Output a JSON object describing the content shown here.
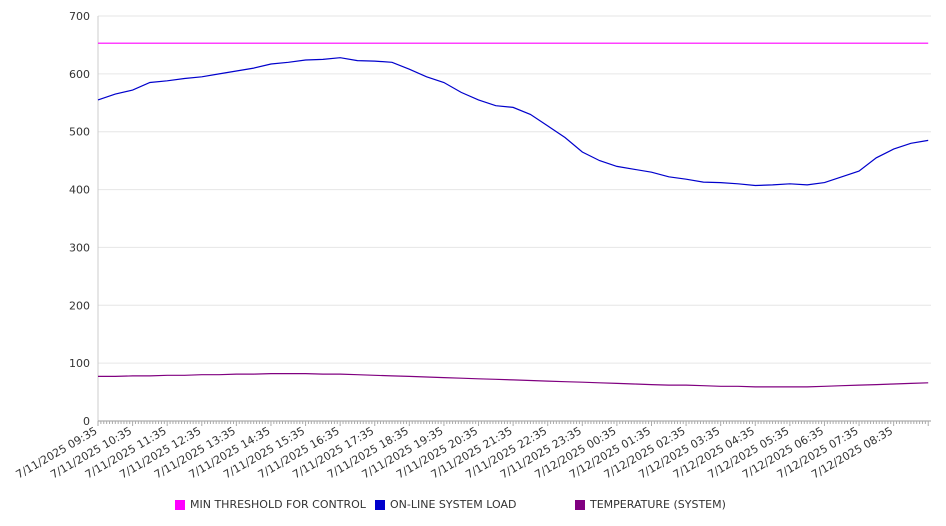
{
  "chart_data": {
    "type": "line",
    "ylim": [
      0,
      700
    ],
    "yticks": [
      0,
      100,
      200,
      300,
      400,
      500,
      600,
      700
    ],
    "x_tick_labels": [
      "7/11/2025 09:35",
      "7/11/2025 10:35",
      "7/11/2025 11:35",
      "7/11/2025 12:35",
      "7/11/2025 13:35",
      "7/11/2025 14:35",
      "7/11/2025 15:35",
      "7/11/2025 16:35",
      "7/11/2025 17:35",
      "7/11/2025 18:35",
      "7/11/2025 19:35",
      "7/11/2025 20:35",
      "7/11/2025 21:35",
      "7/11/2025 22:35",
      "7/11/2025 23:35",
      "7/12/2025 00:35",
      "7/12/2025 01:35",
      "7/12/2025 02:35",
      "7/12/2025 03:35",
      "7/12/2025 04:35",
      "7/12/2025 05:35",
      "7/12/2025 06:35",
      "7/12/2025 07:35",
      "7/12/2025 08:35"
    ],
    "x_hours": [
      0,
      0.5,
      1,
      1.5,
      2,
      2.5,
      3,
      3.5,
      4,
      4.5,
      5,
      5.5,
      6,
      6.5,
      7,
      7.5,
      8,
      8.5,
      9,
      9.5,
      10,
      10.5,
      11,
      11.5,
      12,
      12.5,
      13,
      13.5,
      14,
      14.5,
      15,
      15.5,
      16,
      16.5,
      17,
      17.5,
      18,
      18.5,
      19,
      19.5,
      20,
      20.5,
      21,
      21.5,
      22,
      22.5,
      23,
      23.5,
      24
    ],
    "grid": true,
    "legend_position": "bottom",
    "series": [
      {
        "name": "MIN THRESHOLD FOR CONTROL",
        "color": "#ff00ff",
        "values": [
          653,
          653,
          653,
          653,
          653,
          653,
          653,
          653,
          653,
          653,
          653,
          653,
          653,
          653,
          653,
          653,
          653,
          653,
          653,
          653,
          653,
          653,
          653,
          653,
          653,
          653,
          653,
          653,
          653,
          653,
          653,
          653,
          653,
          653,
          653,
          653,
          653,
          653,
          653,
          653,
          653,
          653,
          653,
          653,
          653,
          653,
          653,
          653,
          653
        ]
      },
      {
        "name": "ON-LINE SYSTEM LOAD",
        "color": "#0000cc",
        "values": [
          555,
          565,
          572,
          585,
          588,
          592,
          595,
          600,
          605,
          610,
          617,
          620,
          624,
          625,
          628,
          623,
          622,
          620,
          608,
          595,
          585,
          568,
          555,
          545,
          542,
          530,
          510,
          490,
          465,
          450,
          440,
          435,
          430,
          422,
          418,
          413,
          412,
          410,
          407,
          408,
          410,
          408,
          412,
          422,
          432,
          455,
          470,
          480,
          485
        ]
      },
      {
        "name": "TEMPERATURE (SYSTEM)",
        "color": "#800080",
        "values": [
          77,
          77,
          78,
          78,
          79,
          79,
          80,
          80,
          81,
          81,
          82,
          82,
          82,
          81,
          81,
          80,
          79,
          78,
          77,
          76,
          75,
          74,
          73,
          72,
          71,
          70,
          69,
          68,
          67,
          66,
          65,
          64,
          63,
          62,
          62,
          61,
          60,
          60,
          59,
          59,
          59,
          59,
          60,
          61,
          62,
          63,
          64,
          65,
          66
        ]
      }
    ]
  }
}
